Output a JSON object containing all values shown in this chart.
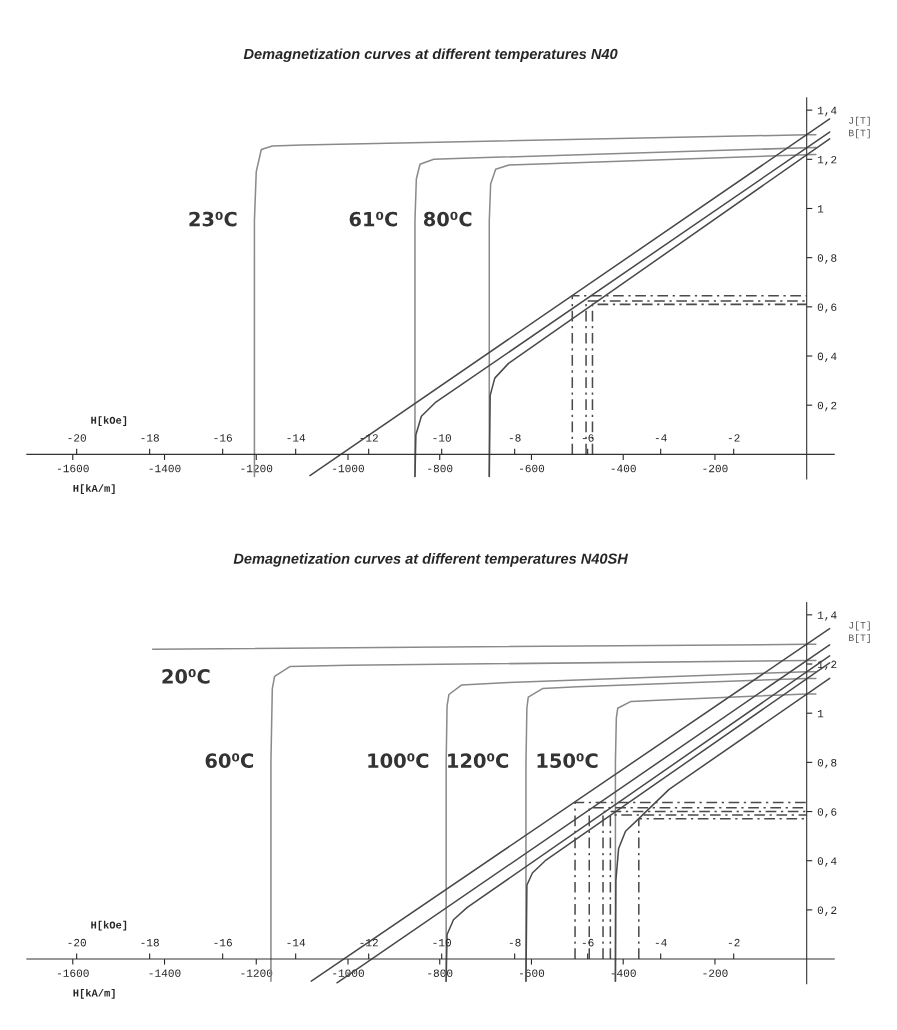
{
  "chart_data": [
    {
      "type": "line",
      "title": "Demagnetization curves at different temperatures N40",
      "xlabel": "H[kA/m]",
      "x2label": "H[kOe]",
      "ylabel": "J[T]",
      "y2label": "B[T]",
      "xlim": [
        -1700,
        60
      ],
      "xticks": [
        -1600,
        -1400,
        -1200,
        -1000,
        -800,
        -600,
        -400,
        -200
      ],
      "x2lim": [
        -21.363,
        0.754
      ],
      "x2ticks": [
        -20,
        -18,
        -16,
        -14,
        -12,
        -10,
        -8,
        -6,
        -4,
        -2
      ],
      "ylim": [
        -0.1,
        1.45
      ],
      "yticks": [
        {
          "value": 0.2,
          "label": "0,2"
        },
        {
          "value": 0.4,
          "label": "0,4"
        },
        {
          "value": 0.6,
          "label": "0,6"
        },
        {
          "value": 0.8,
          "label": "0,8"
        },
        {
          "value": 1,
          "label": "1"
        },
        {
          "value": 1.2,
          "label": "1,2"
        },
        {
          "value": 1.4,
          "label": "1,4"
        }
      ],
      "legend": false,
      "marker": "none",
      "series": [
        {
          "color": "#8a8a8a",
          "line_style": "solid",
          "x": [
            -1204,
            -1204,
            -1200,
            -1189,
            -1165,
            -1100,
            0,
            20
          ],
          "values": [
            -0.09,
            0.95,
            1.15,
            1.24,
            1.254,
            1.258,
            1.3,
            1.3
          ]
        },
        {
          "color": "#8a8a8a",
          "line_style": "solid",
          "x": [
            -854,
            -854,
            -851,
            -843,
            -813,
            -700,
            0,
            20
          ],
          "values": [
            -0.09,
            0.95,
            1.12,
            1.18,
            1.2,
            1.207,
            1.247,
            1.248
          ]
        },
        {
          "color": "#8a8a8a",
          "line_style": "solid",
          "x": [
            -692,
            -692,
            -689,
            -678,
            -649,
            -550,
            0,
            20
          ],
          "values": [
            -0.09,
            0.95,
            1.1,
            1.16,
            1.177,
            1.183,
            1.219,
            1.22
          ]
        },
        {
          "color": "#4a4a4a",
          "line_style": "solid",
          "x": [
            -1083,
            50
          ],
          "values": [
            -0.086,
            1.364
          ]
        },
        {
          "color": "#4a4a4a",
          "line_style": "solid",
          "x": [
            -854,
            -852,
            -840,
            -810,
            50
          ],
          "values": [
            -0.09,
            0.08,
            0.155,
            0.21,
            1.311
          ]
        },
        {
          "color": "#4a4a4a",
          "line_style": "solid",
          "x": [
            -692,
            -690,
            -680,
            -650,
            50
          ],
          "values": [
            -0.09,
            0.24,
            0.31,
            0.37,
            1.283
          ]
        },
        {
          "color": "#4a4a4a",
          "line_style": "dashed",
          "x": [
            -511,
            -511,
            0
          ],
          "values": [
            0,
            0.645,
            0.645
          ]
        },
        {
          "color": "#4a4a4a",
          "line_style": "dashed",
          "x": [
            -481,
            -481,
            0
          ],
          "values": [
            0,
            0.624,
            0.624
          ]
        },
        {
          "color": "#4a4a4a",
          "line_style": "dashed",
          "x": [
            -467,
            -467,
            0
          ],
          "values": [
            0,
            0.61,
            0.61
          ]
        }
      ],
      "annotations": [
        "23⁰C",
        "61⁰C",
        "80⁰C"
      ]
    },
    {
      "type": "line",
      "title": "Demagnetization curves at different temperatures N40SH",
      "xlabel": "H[kA/m]",
      "x2label": "H[kOe]",
      "ylabel": "J[T]",
      "y2label": "B[T]",
      "xlim": [
        -1700,
        60
      ],
      "xticks": [
        -1600,
        -1400,
        -1200,
        -1000,
        -800,
        -600,
        -400,
        -200
      ],
      "x2lim": [
        -21.363,
        0.754
      ],
      "x2ticks": [
        -20,
        -18,
        -16,
        -14,
        -12,
        -10,
        -8,
        -6,
        -4,
        -2
      ],
      "ylim": [
        -0.1,
        1.45
      ],
      "yticks": [
        {
          "value": 0.2,
          "label": "0,2"
        },
        {
          "value": 0.4,
          "label": "0,4"
        },
        {
          "value": 0.6,
          "label": "0,6"
        },
        {
          "value": 0.8,
          "label": "0,8"
        },
        {
          "value": 1,
          "label": "1"
        },
        {
          "value": 1.2,
          "label": "1,2"
        },
        {
          "value": 1.4,
          "label": "1,4"
        }
      ],
      "legend": false,
      "marker": "none",
      "series": [
        {
          "color": "#8a8a8a",
          "line_style": "solid",
          "x": [
            -1426,
            0,
            20
          ],
          "values": [
            1.26,
            1.28,
            1.28
          ]
        },
        {
          "color": "#8a8a8a",
          "line_style": "solid",
          "x": [
            -1168,
            -1168,
            -1165,
            -1160,
            -1126,
            -1000,
            0,
            20
          ],
          "values": [
            -0.09,
            0.8,
            1.1,
            1.15,
            1.19,
            1.195,
            1.214,
            1.214
          ]
        },
        {
          "color": "#8a8a8a",
          "line_style": "solid",
          "x": [
            -786,
            -786,
            -784,
            -780,
            -752,
            -650,
            0,
            20
          ],
          "values": [
            -0.09,
            0.8,
            1.03,
            1.076,
            1.115,
            1.125,
            1.169,
            1.169
          ]
        },
        {
          "color": "#8a8a8a",
          "line_style": "solid",
          "x": [
            -612,
            -612,
            -610,
            -607,
            -576,
            -500,
            0,
            20
          ],
          "values": [
            -0.09,
            0.8,
            1.02,
            1.065,
            1.1,
            1.108,
            1.141,
            1.141
          ]
        },
        {
          "color": "#8a8a8a",
          "line_style": "solid",
          "x": [
            -417,
            -417,
            -415,
            -412,
            -383,
            -300,
            0,
            20
          ],
          "values": [
            -0.09,
            0.8,
            0.98,
            1.02,
            1.048,
            1.055,
            1.078,
            1.078
          ]
        },
        {
          "color": "#4a4a4a",
          "line_style": "solid",
          "x": [
            -1080,
            50
          ],
          "values": [
            -0.09,
            1.344
          ]
        },
        {
          "color": "#4a4a4a",
          "line_style": "solid",
          "x": [
            -1024,
            50
          ],
          "values": [
            -0.097,
            1.278
          ]
        },
        {
          "color": "#4a4a4a",
          "line_style": "solid",
          "x": [
            -786,
            -784,
            -770,
            -740,
            50
          ],
          "values": [
            -0.09,
            0.1,
            0.16,
            0.21,
            1.233
          ]
        },
        {
          "color": "#4a4a4a",
          "line_style": "solid",
          "x": [
            -612,
            -610,
            -598,
            -570,
            50
          ],
          "values": [
            -0.09,
            0.3,
            0.35,
            0.4,
            1.205
          ]
        },
        {
          "color": "#4a4a4a",
          "line_style": "solid",
          "x": [
            -417,
            -416,
            -410,
            -395,
            -366,
            -300,
            50
          ],
          "values": [
            -0.09,
            0.32,
            0.45,
            0.52,
            0.571,
            0.69,
            1.142
          ]
        },
        {
          "color": "#4a4a4a",
          "line_style": "dashed",
          "x": [
            -505,
            -505,
            0
          ],
          "values": [
            0,
            0.637,
            0.637
          ]
        },
        {
          "color": "#4a4a4a",
          "line_style": "dashed",
          "x": [
            -474,
            -474,
            0
          ],
          "values": [
            0,
            0.615,
            0.615
          ]
        },
        {
          "color": "#4a4a4a",
          "line_style": "dashed",
          "x": [
            -444,
            -444,
            0
          ],
          "values": [
            0,
            0.6,
            0.6
          ]
        },
        {
          "color": "#4a4a4a",
          "line_style": "dashed",
          "x": [
            -428,
            -428,
            0
          ],
          "values": [
            0,
            0.586,
            0.586
          ]
        },
        {
          "color": "#4a4a4a",
          "line_style": "dashed",
          "x": [
            -366,
            -366,
            0
          ],
          "values": [
            0,
            0.571,
            0.571
          ]
        }
      ],
      "annotations": [
        "20⁰C",
        "60⁰C",
        "100⁰C",
        "120⁰C",
        "150⁰C"
      ]
    }
  ]
}
